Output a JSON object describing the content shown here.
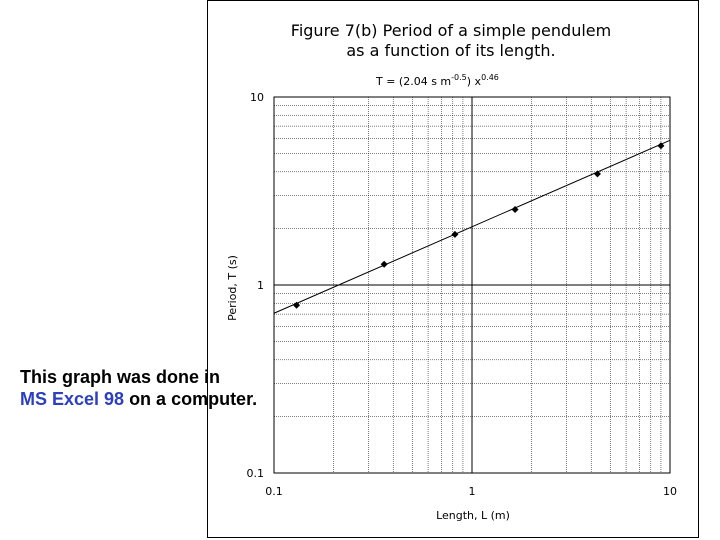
{
  "chart_data": {
    "type": "scatter",
    "title_line1": "Figure 7(b) Period of a simple pendulem",
    "title_line2": "as a function of its length.",
    "equation": {
      "prefix": "T = (2.04 s m",
      "exp1": "-0.5",
      "mid": ") x",
      "exp2": "0.46"
    },
    "xlabel": "Length, L (m)",
    "ylabel": "Period, T (s)",
    "x_scale": "log",
    "y_scale": "log",
    "xlim": [
      0.1,
      10
    ],
    "ylim": [
      0.1,
      10
    ],
    "x_ticks": [
      "0.1",
      "1",
      "10"
    ],
    "y_ticks": [
      "0.1",
      "1",
      "10"
    ],
    "grid": true,
    "points": [
      {
        "x": 0.13,
        "y": 0.78
      },
      {
        "x": 0.36,
        "y": 1.29
      },
      {
        "x": 0.82,
        "y": 1.86
      },
      {
        "x": 1.65,
        "y": 2.52
      },
      {
        "x": 4.3,
        "y": 3.9
      },
      {
        "x": 9.0,
        "y": 5.5
      }
    ],
    "fit": {
      "coef": 2.04,
      "exp": 0.46
    }
  },
  "caption": {
    "line1": "This graph was done in",
    "line2_highlight": "MS Excel 98",
    "line2_rest": " on a computer."
  },
  "colors": {
    "caption_highlight": "#2b3fbf",
    "data": "#000000",
    "grid": "#000000"
  }
}
